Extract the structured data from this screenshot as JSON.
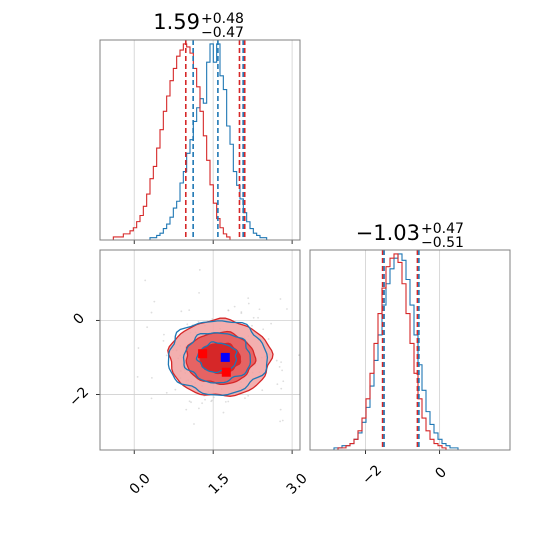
{
  "chart_data": {
    "type": "corner",
    "grid": true,
    "colors": {
      "blue": "#1f77b4",
      "red": "#d62728",
      "red_light": "#f1a1a1",
      "red_mid": "#e45b5b",
      "marker_blue": "#0000ff",
      "marker_red": "#ff0000"
    },
    "titles": [
      {
        "main": "1.59",
        "upper": "+0.48",
        "lower": "−0.47"
      },
      {
        "main": "−1.03",
        "upper": "+0.47",
        "lower": "−0.51"
      }
    ],
    "param1": {
      "range": [
        -0.65,
        3.15
      ],
      "ticks": [
        0.0,
        1.5,
        3.0
      ],
      "tick_labels": [
        "0.0",
        "1.5",
        "3.0"
      ],
      "quantiles_blue": [
        1.12,
        1.59,
        2.07
      ],
      "quantiles_red": [
        0.98,
        2.0,
        2.1
      ],
      "blue_hist": [
        0,
        0,
        0,
        0,
        0,
        0,
        0,
        0,
        0,
        0,
        0,
        0,
        0,
        0,
        0,
        1,
        1,
        2,
        3,
        5,
        7,
        10,
        14,
        17,
        25,
        30,
        38,
        44,
        52,
        58,
        62,
        60,
        78,
        86,
        78,
        86,
        72,
        66,
        50,
        42,
        30,
        24,
        18,
        12,
        8,
        5,
        3,
        2,
        1,
        1,
        0,
        0,
        0,
        0,
        0,
        0,
        0,
        0,
        0,
        0
      ],
      "red_hist": [
        0,
        0,
        0,
        0,
        1,
        1,
        1,
        2,
        2,
        3,
        4,
        6,
        8,
        11,
        15,
        20,
        24,
        30,
        36,
        42,
        47,
        52,
        56,
        60,
        62,
        64,
        63,
        61,
        56,
        50,
        42,
        34,
        26,
        18,
        12,
        7,
        4,
        2,
        1,
        0,
        0,
        0,
        0,
        0,
        0,
        0,
        0,
        0,
        0,
        0,
        0,
        0,
        0,
        0,
        0,
        0,
        0,
        0,
        0,
        0
      ]
    },
    "param2": {
      "range": [
        -3.5,
        1.9
      ],
      "ticks": [
        -2,
        0
      ],
      "tick_labels": [
        "−2",
        "0"
      ],
      "quantiles_blue": [
        -1.5,
        -0.56
      ],
      "quantiles_red": [
        -1.54,
        -0.6
      ],
      "blue_hist": [
        0,
        0,
        0,
        0,
        0,
        0,
        1,
        1,
        2,
        2,
        3,
        5,
        8,
        13,
        20,
        30,
        42,
        54,
        68,
        78,
        85,
        90,
        92,
        89,
        80,
        68,
        54,
        40,
        28,
        18,
        12,
        8,
        5,
        3,
        2,
        1,
        1,
        0,
        0,
        0,
        0,
        0,
        0,
        0,
        0,
        0,
        0,
        0,
        0,
        0
      ],
      "red_hist": [
        0,
        0,
        0,
        0,
        0,
        0,
        0,
        1,
        1,
        2,
        3,
        5,
        9,
        15,
        24,
        36,
        50,
        64,
        76,
        86,
        90,
        92,
        88,
        78,
        64,
        50,
        36,
        24,
        15,
        9,
        5,
        3,
        2,
        1,
        0,
        0,
        0,
        0,
        0,
        0,
        0,
        0,
        0,
        0,
        0,
        0,
        0,
        0,
        0,
        0
      ]
    },
    "markers": [
      {
        "x": 1.3,
        "y": -0.9,
        "color": "#ff0000"
      },
      {
        "x": 1.75,
        "y": -1.4,
        "color": "#ff0000"
      },
      {
        "x": 1.73,
        "y": -1.0,
        "color": "#0000ff"
      }
    ],
    "joint_center": [
      1.6,
      -1.02
    ],
    "joint_sigma": [
      0.45,
      0.48
    ]
  }
}
